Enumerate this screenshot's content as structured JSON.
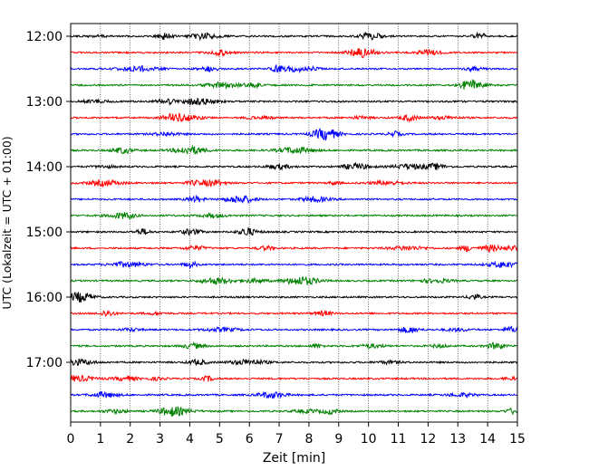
{
  "chart_data": {
    "type": "line",
    "xlabel": "Zeit  [min]",
    "ylabel": "UTC (Lokalzeit = UTC + 01:00)",
    "xlim": [
      0,
      15
    ],
    "x_ticks": [
      "0",
      "1",
      "2",
      "3",
      "4",
      "5",
      "6",
      "7",
      "8",
      "9",
      "10",
      "11",
      "12",
      "13",
      "14",
      "15"
    ],
    "y_ticks": [
      "12:00",
      "13:00",
      "14:00",
      "15:00",
      "16:00",
      "17:00"
    ],
    "grid_x": true,
    "trace_interval_minutes": 15,
    "trace_start": "12:00",
    "trace_count": 24,
    "trace_colors": [
      "#000000",
      "#ff0000",
      "#0000ff",
      "#008000"
    ]
  }
}
